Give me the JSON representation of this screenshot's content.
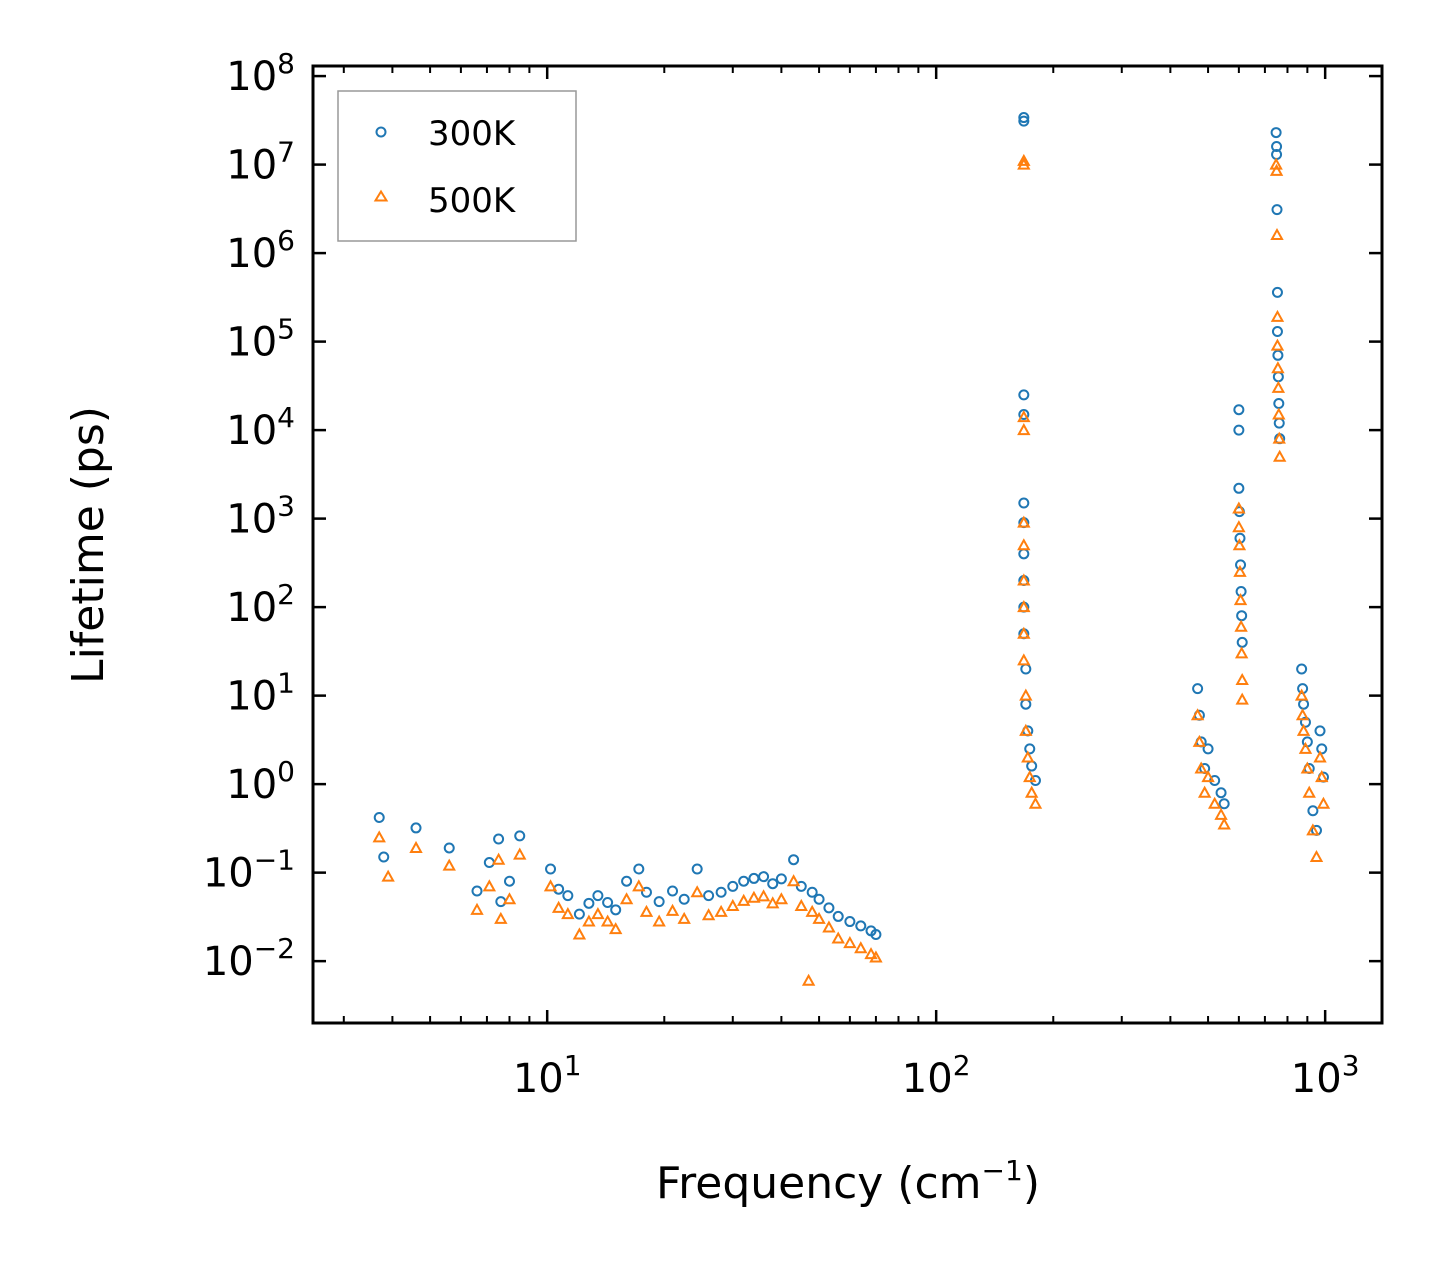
{
  "chart_data": {
    "type": "scatter",
    "title": "",
    "xlabel": "Frequency (cm",
    "xlabel_sup": "−1",
    "xlabel_tail": ")",
    "ylabel": "Lifetime (ps)",
    "xscale": "log",
    "yscale": "log",
    "xlim": [
      2.5,
      1400
    ],
    "ylim": [
      0.002,
      130000000
    ],
    "x_ticks": [
      {
        "value": 10,
        "base": "10",
        "exp": "1"
      },
      {
        "value": 100,
        "base": "10",
        "exp": "2"
      },
      {
        "value": 1000,
        "base": "10",
        "exp": "3"
      }
    ],
    "y_ticks": [
      {
        "value": 0.01,
        "base": "10",
        "exp": "−2"
      },
      {
        "value": 0.1,
        "base": "10",
        "exp": "−1"
      },
      {
        "value": 1,
        "base": "10",
        "exp": "0"
      },
      {
        "value": 10,
        "base": "10",
        "exp": "1"
      },
      {
        "value": 100,
        "base": "10",
        "exp": "2"
      },
      {
        "value": 1000,
        "base": "10",
        "exp": "3"
      },
      {
        "value": 10000,
        "base": "10",
        "exp": "4"
      },
      {
        "value": 100000,
        "base": "10",
        "exp": "5"
      },
      {
        "value": 1000000,
        "base": "10",
        "exp": "6"
      },
      {
        "value": 10000000,
        "base": "10",
        "exp": "7"
      },
      {
        "value": 100000000,
        "base": "10",
        "exp": "8"
      }
    ],
    "legend_position": "top-left",
    "series": [
      {
        "name": "300K",
        "marker": "circle",
        "color": "#1f77b4",
        "points": [
          [
            3.7,
            0.42
          ],
          [
            3.8,
            0.15
          ],
          [
            4.6,
            0.32
          ],
          [
            5.6,
            0.19
          ],
          [
            6.6,
            0.062
          ],
          [
            7.1,
            0.13
          ],
          [
            7.5,
            0.24
          ],
          [
            7.6,
            0.047
          ],
          [
            8.0,
            0.08
          ],
          [
            8.5,
            0.26
          ],
          [
            10.2,
            0.11
          ],
          [
            10.7,
            0.065
          ],
          [
            11.3,
            0.055
          ],
          [
            12.1,
            0.034
          ],
          [
            12.8,
            0.045
          ],
          [
            13.5,
            0.055
          ],
          [
            14.3,
            0.046
          ],
          [
            15.0,
            0.038
          ],
          [
            16.0,
            0.08
          ],
          [
            17.2,
            0.11
          ],
          [
            18.0,
            0.06
          ],
          [
            19.4,
            0.047
          ],
          [
            21.0,
            0.062
          ],
          [
            22.5,
            0.05
          ],
          [
            24.3,
            0.11
          ],
          [
            26.0,
            0.055
          ],
          [
            28.0,
            0.06
          ],
          [
            30.0,
            0.07
          ],
          [
            32.0,
            0.08
          ],
          [
            34.0,
            0.086
          ],
          [
            36.0,
            0.09
          ],
          [
            38.0,
            0.075
          ],
          [
            40.0,
            0.085
          ],
          [
            43.0,
            0.14
          ],
          [
            45.0,
            0.07
          ],
          [
            48.0,
            0.06
          ],
          [
            50.0,
            0.05
          ],
          [
            53.0,
            0.04
          ],
          [
            56.0,
            0.032
          ],
          [
            60.0,
            0.028
          ],
          [
            64.0,
            0.025
          ],
          [
            68.0,
            0.022
          ],
          [
            70.0,
            0.02
          ],
          [
            168,
            34000000.0
          ],
          [
            168,
            31000000.0
          ],
          [
            168,
            25000.0
          ],
          [
            168,
            15000.0
          ],
          [
            168,
            1500.0
          ],
          [
            168,
            900
          ],
          [
            168,
            400
          ],
          [
            168,
            200
          ],
          [
            168,
            100
          ],
          [
            168,
            50
          ],
          [
            170,
            20
          ],
          [
            170,
            8
          ],
          [
            172,
            4
          ],
          [
            174,
            2.5
          ],
          [
            176,
            1.6
          ],
          [
            180,
            1.1
          ],
          [
            470,
            12
          ],
          [
            475,
            6
          ],
          [
            480,
            3
          ],
          [
            490,
            1.5
          ],
          [
            500,
            2.5
          ],
          [
            520,
            1.1
          ],
          [
            540,
            0.8
          ],
          [
            550,
            0.6
          ],
          [
            600,
            17000.0
          ],
          [
            600,
            10000.0
          ],
          [
            600,
            2200.0
          ],
          [
            602,
            1200.0
          ],
          [
            604,
            600
          ],
          [
            606,
            300
          ],
          [
            608,
            150
          ],
          [
            610,
            80
          ],
          [
            612,
            40
          ],
          [
            748,
            23000000.0
          ],
          [
            750,
            16000000.0
          ],
          [
            750,
            13000000.0
          ],
          [
            752,
            3100000.0
          ],
          [
            754,
            360000.0
          ],
          [
            754,
            130000.0
          ],
          [
            756,
            70000.0
          ],
          [
            758,
            40000.0
          ],
          [
            760,
            20000.0
          ],
          [
            762,
            12000.0
          ],
          [
            764,
            8000.0
          ],
          [
            870,
            20
          ],
          [
            875,
            12
          ],
          [
            880,
            8
          ],
          [
            890,
            5
          ],
          [
            900,
            3
          ],
          [
            910,
            1.5
          ],
          [
            930,
            0.5
          ],
          [
            950,
            0.3
          ],
          [
            970,
            4
          ],
          [
            980,
            2.5
          ],
          [
            990,
            1.2
          ]
        ]
      },
      {
        "name": "500K",
        "marker": "triangle",
        "color": "#ff7f0e",
        "points": [
          [
            3.7,
            0.25
          ],
          [
            3.9,
            0.09
          ],
          [
            4.6,
            0.19
          ],
          [
            5.6,
            0.12
          ],
          [
            6.6,
            0.038
          ],
          [
            7.1,
            0.07
          ],
          [
            7.5,
            0.14
          ],
          [
            7.6,
            0.03
          ],
          [
            8.0,
            0.05
          ],
          [
            8.5,
            0.16
          ],
          [
            10.2,
            0.07
          ],
          [
            10.7,
            0.04
          ],
          [
            11.3,
            0.034
          ],
          [
            12.1,
            0.02
          ],
          [
            12.8,
            0.028
          ],
          [
            13.5,
            0.034
          ],
          [
            14.3,
            0.028
          ],
          [
            15.0,
            0.023
          ],
          [
            16.0,
            0.05
          ],
          [
            17.2,
            0.07
          ],
          [
            18.0,
            0.036
          ],
          [
            19.4,
            0.028
          ],
          [
            21.0,
            0.037
          ],
          [
            22.5,
            0.03
          ],
          [
            24.3,
            0.06
          ],
          [
            26.0,
            0.033
          ],
          [
            28.0,
            0.036
          ],
          [
            30.0,
            0.042
          ],
          [
            32.0,
            0.048
          ],
          [
            34.0,
            0.052
          ],
          [
            36.0,
            0.054
          ],
          [
            38.0,
            0.045
          ],
          [
            40.0,
            0.05
          ],
          [
            43.0,
            0.08
          ],
          [
            45.0,
            0.042
          ],
          [
            47.0,
            0.006
          ],
          [
            48.0,
            0.036
          ],
          [
            50.0,
            0.03
          ],
          [
            53.0,
            0.024
          ],
          [
            56.0,
            0.018
          ],
          [
            60.0,
            0.016
          ],
          [
            64.0,
            0.014
          ],
          [
            68.0,
            0.012
          ],
          [
            70.0,
            0.011
          ],
          [
            168,
            11000000.0
          ],
          [
            168,
            10000000.0
          ],
          [
            168,
            14000.0
          ],
          [
            168,
            10000.0
          ],
          [
            168,
            900
          ],
          [
            168,
            500
          ],
          [
            168,
            200
          ],
          [
            168,
            100
          ],
          [
            168,
            50
          ],
          [
            168,
            25
          ],
          [
            170,
            10
          ],
          [
            170,
            4
          ],
          [
            172,
            2
          ],
          [
            174,
            1.2
          ],
          [
            176,
            0.8
          ],
          [
            180,
            0.6
          ],
          [
            470,
            6
          ],
          [
            475,
            3
          ],
          [
            480,
            1.5
          ],
          [
            490,
            0.8
          ],
          [
            500,
            1.2
          ],
          [
            520,
            0.6
          ],
          [
            540,
            0.45
          ],
          [
            550,
            0.35
          ],
          [
            600,
            1300.0
          ],
          [
            600,
            800
          ],
          [
            602,
            500
          ],
          [
            604,
            250
          ],
          [
            606,
            120
          ],
          [
            608,
            60
          ],
          [
            610,
            30
          ],
          [
            612,
            15
          ],
          [
            612,
            9
          ],
          [
            748,
            10000000.0
          ],
          [
            750,
            8500000.0
          ],
          [
            752,
            1600000.0
          ],
          [
            754,
            190000.0
          ],
          [
            754,
            90000.0
          ],
          [
            756,
            50000.0
          ],
          [
            758,
            30000.0
          ],
          [
            760,
            15000.0
          ],
          [
            762,
            8000.0
          ],
          [
            764,
            5000.0
          ],
          [
            870,
            10
          ],
          [
            875,
            6
          ],
          [
            880,
            4
          ],
          [
            890,
            2.5
          ],
          [
            900,
            1.5
          ],
          [
            910,
            0.8
          ],
          [
            930,
            0.3
          ],
          [
            950,
            0.15
          ],
          [
            970,
            2
          ],
          [
            980,
            1.2
          ],
          [
            990,
            0.6
          ]
        ]
      }
    ]
  }
}
